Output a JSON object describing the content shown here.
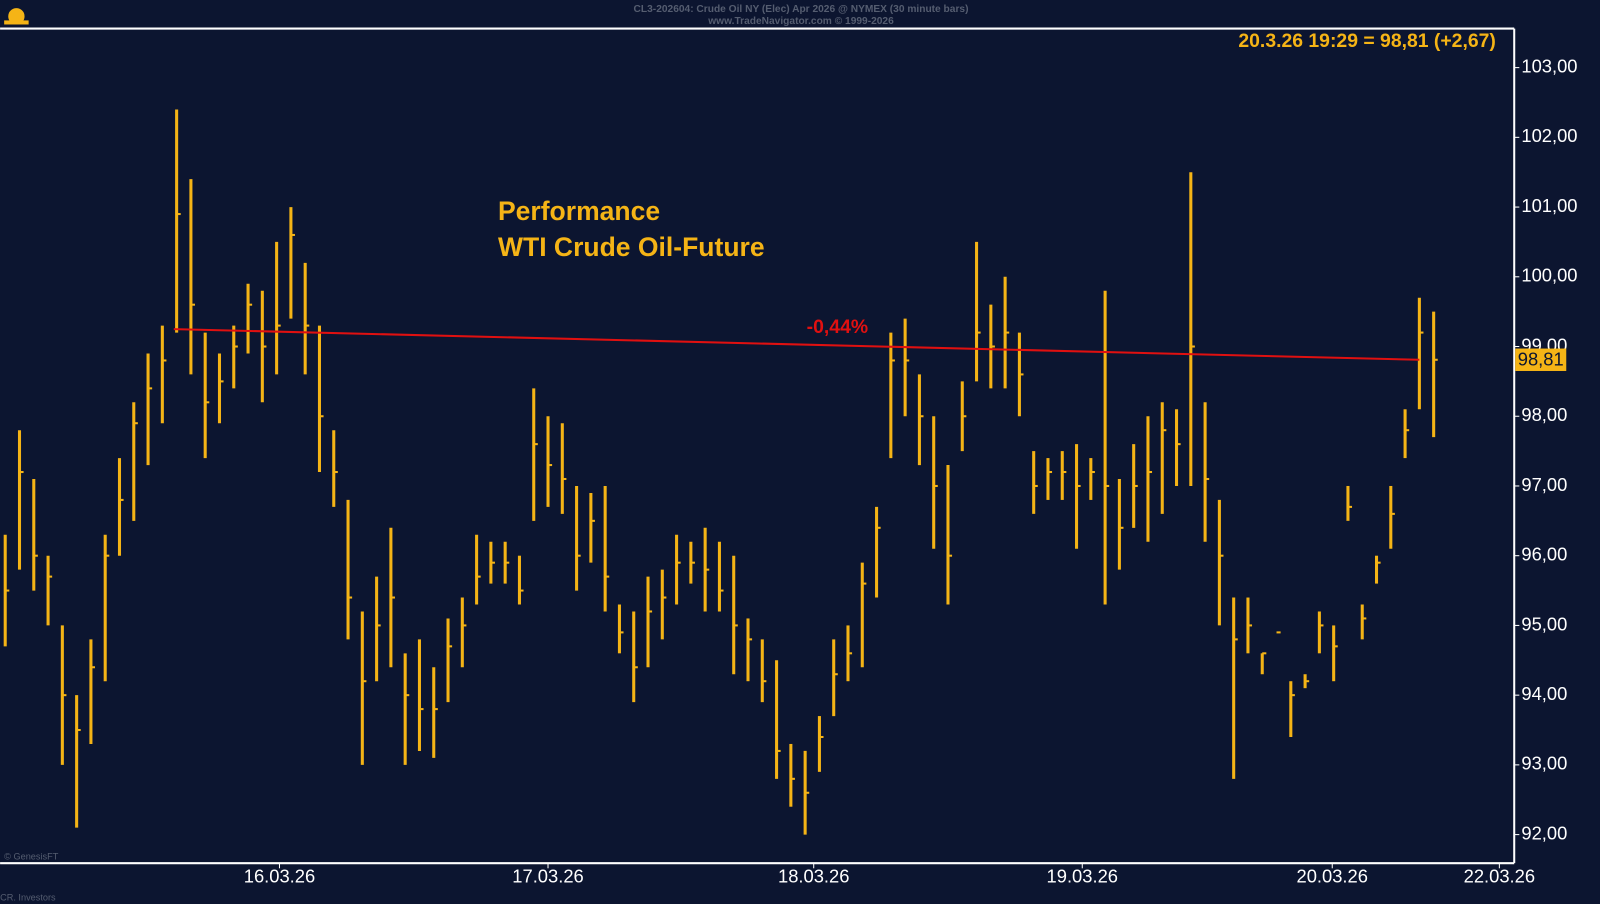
{
  "chart_data": {
    "type": "ohlc",
    "header": "CL3-202604: Crude Oil NY (Elec) Apr 2026 @ NYMEX (30 minute bars)",
    "subheader": "www.TradeNavigator.com © 1999-2026",
    "title": "Performance",
    "subtitle": "WTI Crude Oil-Future",
    "last_quote": "20.3.26 19:29 = 98,81 (+2,67)",
    "footer_left": "© GenesisFT",
    "footer_bottom": "CR. Investors",
    "color": "#f5b416",
    "high": [
      96.3,
      97.8,
      97.1,
      96.0,
      95.0,
      94.0,
      94.8,
      96.3,
      97.4,
      98.2,
      98.9,
      99.3,
      102.4,
      101.4,
      99.2,
      98.9,
      99.3,
      99.9,
      99.8,
      100.5,
      101.0,
      100.2,
      99.3,
      97.8,
      96.8,
      95.2,
      95.7,
      96.4,
      94.6,
      94.8,
      94.4,
      95.1,
      95.4,
      96.3,
      96.2,
      96.2,
      96.0,
      98.4,
      98.0,
      97.9,
      97.0,
      96.9,
      97.0,
      95.3,
      95.2,
      95.7,
      95.8,
      96.3,
      96.2,
      96.4,
      96.2,
      96.0,
      95.1,
      94.8,
      94.5,
      93.3,
      93.2,
      93.7,
      94.8,
      95.0,
      95.9,
      96.7,
      99.2,
      99.4,
      98.6,
      98.0,
      97.3,
      98.5,
      100.5,
      99.6,
      100.0,
      99.2,
      97.5,
      97.4,
      97.5,
      97.6,
      97.4,
      99.8,
      97.1,
      97.6,
      98.0,
      98.2,
      98.1,
      101.5,
      98.2,
      96.8,
      95.4,
      95.4,
      94.6,
      94.9,
      94.2,
      94.3,
      95.2,
      95.0,
      97.0,
      95.3,
      96.0,
      97.0,
      98.1,
      99.7,
      99.5
    ],
    "low": [
      94.7,
      95.8,
      95.5,
      95.0,
      93.0,
      92.1,
      93.3,
      94.2,
      96.0,
      96.5,
      97.3,
      97.9,
      99.2,
      98.6,
      97.4,
      97.9,
      98.4,
      98.9,
      98.2,
      98.6,
      99.4,
      98.6,
      97.2,
      96.7,
      94.8,
      93.0,
      94.2,
      94.4,
      93.0,
      93.2,
      93.1,
      93.9,
      94.4,
      95.3,
      95.6,
      95.6,
      95.3,
      96.5,
      96.7,
      96.6,
      95.5,
      95.9,
      95.2,
      94.6,
      93.9,
      94.4,
      94.8,
      95.3,
      95.6,
      95.2,
      95.2,
      94.3,
      94.2,
      93.9,
      92.8,
      92.4,
      92.0,
      92.9,
      93.7,
      94.2,
      94.4,
      95.4,
      97.4,
      98.0,
      97.3,
      96.1,
      95.3,
      97.5,
      98.5,
      98.4,
      98.4,
      98.0,
      96.6,
      96.8,
      96.8,
      96.1,
      96.8,
      95.3,
      95.8,
      96.4,
      96.2,
      96.6,
      97.0,
      97.0,
      96.2,
      95.0,
      92.8,
      94.6,
      94.3,
      94.9,
      93.4,
      94.1,
      94.6,
      94.2,
      96.5,
      94.8,
      95.6,
      96.1,
      97.4,
      98.1,
      97.7
    ],
    "close": [
      95.5,
      97.2,
      96.0,
      95.7,
      94.0,
      93.5,
      94.4,
      96.0,
      96.8,
      97.9,
      98.4,
      98.8,
      100.9,
      99.6,
      98.2,
      98.5,
      99.0,
      99.6,
      99.0,
      99.3,
      100.6,
      99.3,
      98.0,
      97.2,
      95.4,
      94.2,
      95.0,
      95.4,
      94.0,
      93.8,
      93.8,
      94.7,
      95.0,
      95.7,
      95.9,
      95.9,
      95.5,
      97.6,
      97.3,
      97.1,
      96.0,
      96.5,
      95.7,
      94.9,
      94.4,
      95.2,
      95.4,
      95.9,
      95.9,
      95.8,
      95.5,
      95.0,
      94.8,
      94.2,
      93.2,
      92.8,
      92.6,
      93.4,
      94.3,
      94.6,
      95.6,
      96.4,
      98.8,
      98.8,
      98.0,
      97.0,
      96.0,
      98.0,
      99.2,
      99.0,
      99.2,
      98.6,
      97.0,
      97.2,
      97.2,
      97.0,
      97.2,
      97.0,
      96.4,
      97.0,
      97.2,
      97.8,
      97.6,
      99.0,
      97.1,
      96.0,
      94.8,
      95.0,
      94.6,
      94.9,
      94.0,
      94.2,
      95.0,
      94.7,
      96.7,
      95.1,
      95.9,
      96.6,
      97.8,
      99.2,
      98.81
    ],
    "xlim": [
      -0.36,
      105.64
    ],
    "xticks": [
      {
        "value": 19.2,
        "label": "16.03.26"
      },
      {
        "value": 38.0,
        "label": "17.03.26"
      },
      {
        "value": 56.6,
        "label": "18.03.26"
      },
      {
        "value": 75.4,
        "label": "19.03.26"
      },
      {
        "value": 92.9,
        "label": "20.03.26"
      },
      {
        "value": 104.6,
        "label": "22.03.26"
      }
    ],
    "ylim": [
      91.59,
      103.56
    ],
    "yticks": [
      {
        "value": 92,
        "label": "92,00"
      },
      {
        "value": 93,
        "label": "93,00"
      },
      {
        "value": 94,
        "label": "94,00"
      },
      {
        "value": 95,
        "label": "95,00"
      },
      {
        "value": 96,
        "label": "96,00"
      },
      {
        "value": 97,
        "label": "97,00"
      },
      {
        "value": 98,
        "label": "98,00"
      },
      {
        "value": 99,
        "label": "99,00"
      },
      {
        "value": 100,
        "label": "100,00"
      },
      {
        "value": 101,
        "label": "101,00"
      },
      {
        "value": 102,
        "label": "102,00"
      },
      {
        "value": 103,
        "label": "103,00"
      }
    ],
    "reference_line": {
      "x": [
        11.8,
        99
      ],
      "values": [
        99.25,
        98.81
      ],
      "color": "#e01010",
      "label": "-0,44%"
    },
    "last_label": {
      "value": 98.81,
      "label": "98,81"
    }
  }
}
